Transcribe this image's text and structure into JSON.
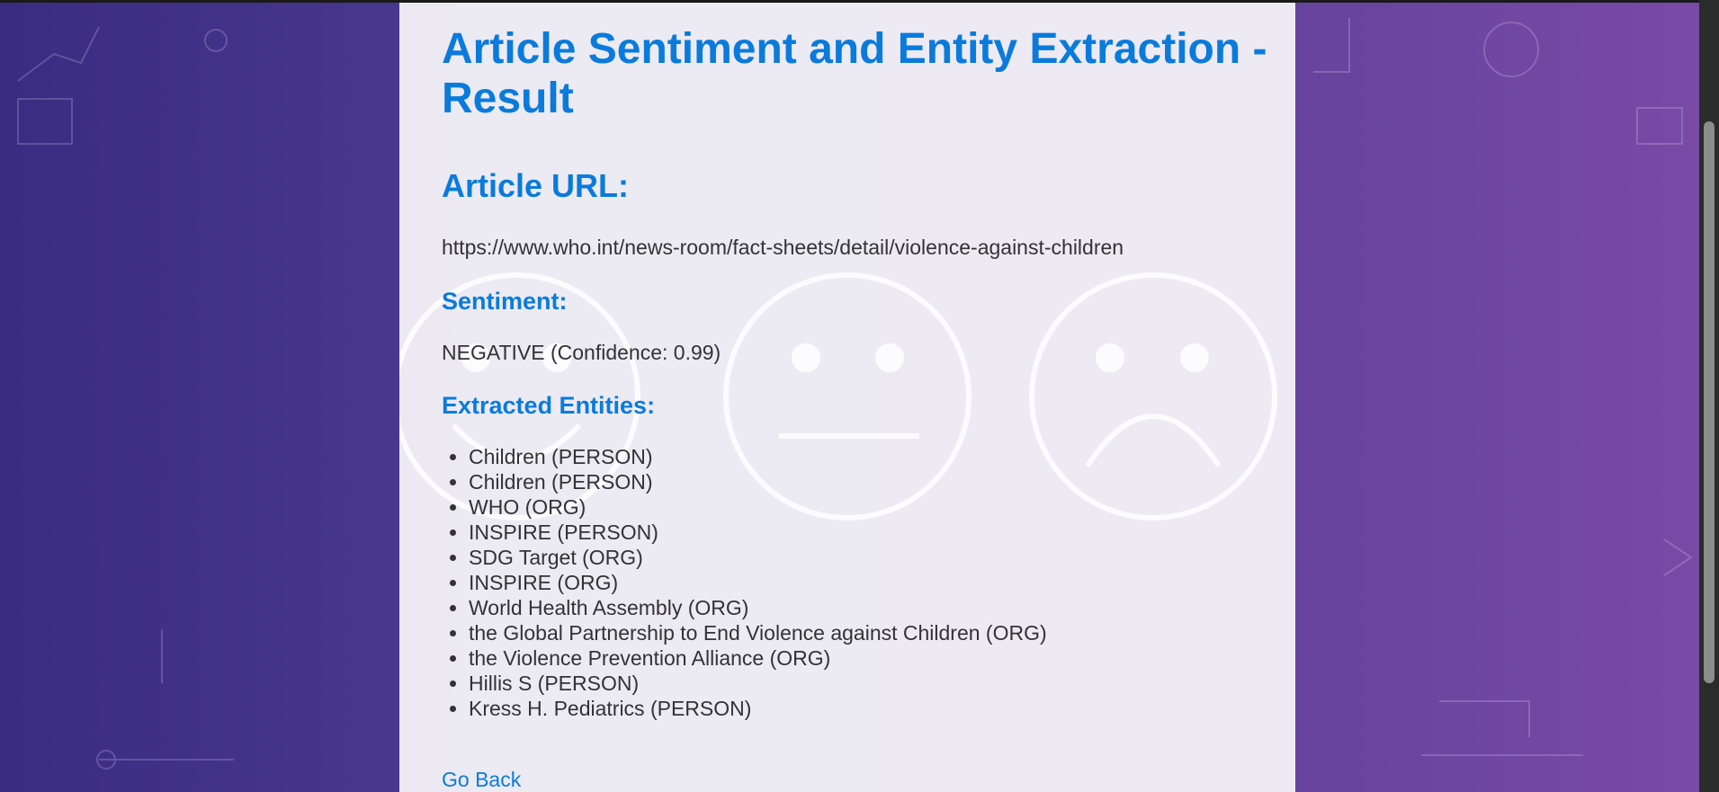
{
  "page": {
    "title": "Article Sentiment and Entity Extraction - Result"
  },
  "article_url": {
    "heading": "Article URL:",
    "value": "https://www.who.int/news-room/fact-sheets/detail/violence-against-children"
  },
  "sentiment": {
    "heading": "Sentiment:",
    "value": "NEGATIVE (Confidence: 0.99)"
  },
  "entities": {
    "heading": "Extracted Entities:",
    "items": [
      "Children (PERSON)",
      "Children (PERSON)",
      "WHO (ORG)",
      "INSPIRE (PERSON)",
      "SDG Target (ORG)",
      "INSPIRE (ORG)",
      "World Health Assembly (ORG)",
      "the Global Partnership to End Violence against Children (ORG)",
      "the Violence Prevention Alliance (ORG)",
      "Hillis S (PERSON)",
      "Kress H. Pediatrics (PERSON)"
    ]
  },
  "actions": {
    "go_back_label": "Go Back"
  },
  "colors": {
    "accent": "#0a7bdc",
    "text": "#333333",
    "card_bg": "#f2f0f6",
    "bg_left": "#3a2c82",
    "bg_right": "#7a4aa6"
  },
  "icons": [
    "smiling-face-icon",
    "neutral-face-icon",
    "sad-face-icon"
  ]
}
